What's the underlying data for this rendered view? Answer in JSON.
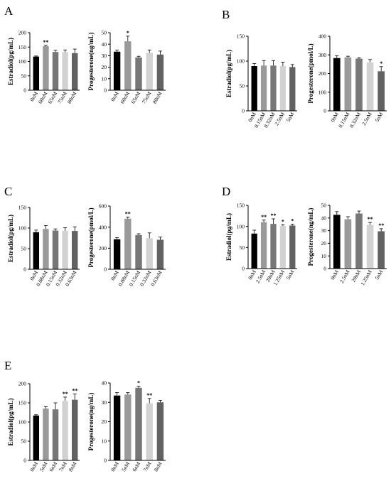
{
  "palette": [
    "#000000",
    "#9a9a9a",
    "#777777",
    "#d2d2d2",
    "#626262"
  ],
  "chart_data": [
    {
      "panel": "A",
      "type": "bar",
      "ylabel": "Estradiol(pg/mL)",
      "ylim": [
        0,
        200
      ],
      "yticks": [
        0,
        50,
        100,
        150,
        200
      ],
      "categories": [
        "0nM",
        "60nM",
        "65nM",
        "75nM",
        "80nM"
      ],
      "values": [
        117,
        153,
        133,
        133,
        129
      ],
      "errors": [
        2,
        3,
        6,
        7,
        14
      ],
      "sig": [
        "",
        "**",
        "",
        "",
        ""
      ]
    },
    {
      "panel": "A",
      "type": "bar",
      "ylabel": "Progesterone(ng/mL)",
      "ylim": [
        0,
        50
      ],
      "yticks": [
        0,
        10,
        20,
        30,
        40,
        50
      ],
      "categories": [
        "0nM",
        "60nM",
        "65nM",
        "75nM",
        "80nM"
      ],
      "values": [
        33.5,
        42.5,
        28.5,
        32.5,
        31.0
      ],
      "errors": [
        1.5,
        4.5,
        1.0,
        2.5,
        3.0
      ],
      "sig": [
        "",
        "*",
        "",
        "",
        ""
      ]
    },
    {
      "panel": "B",
      "type": "bar",
      "ylabel": "Estradiol(pg/mL)",
      "ylim": [
        0,
        150
      ],
      "yticks": [
        0,
        50,
        100,
        150
      ],
      "categories": [
        "0nM",
        "0.15nM",
        "0.32nM",
        "2.5nM",
        "5nM"
      ],
      "values": [
        90,
        91,
        91,
        90,
        88
      ],
      "errors": [
        5,
        10,
        10,
        8,
        5
      ],
      "sig": [
        "",
        "",
        "",
        "",
        ""
      ]
    },
    {
      "panel": "B",
      "type": "bar",
      "ylabel": "Progesterone(pmol/L)",
      "ylim": [
        0,
        400
      ],
      "yticks": [
        0,
        100,
        200,
        300,
        400
      ],
      "categories": [
        "0nM",
        "0.15nM",
        "0.32nM",
        "2.5nM",
        "5nM"
      ],
      "values": [
        283,
        287,
        280,
        260,
        212
      ],
      "errors": [
        12,
        6,
        5,
        15,
        25
      ],
      "sig": [
        "",
        "",
        "",
        "",
        "*"
      ]
    },
    {
      "panel": "C",
      "type": "bar",
      "ylabel": "Estradiol(pg/mL)",
      "ylim": [
        0,
        150
      ],
      "yticks": [
        0,
        50,
        100,
        150
      ],
      "categories": [
        "0nM",
        "0.08nM",
        "0.15nM",
        "0.32nM",
        "0.63nM"
      ],
      "values": [
        90,
        98,
        94,
        93,
        93
      ],
      "errors": [
        5,
        8,
        4,
        8,
        10
      ],
      "sig": [
        "",
        "",
        "",
        "",
        ""
      ]
    },
    {
      "panel": "C",
      "type": "bar",
      "ylabel": "Progesterone(pmol/L)",
      "ylim": [
        0,
        600
      ],
      "yticks": [
        0,
        200,
        400,
        600
      ],
      "categories": [
        "0nM",
        "0.08nM",
        "0.15nM",
        "0.32nM",
        "0.63nM"
      ],
      "values": [
        285,
        480,
        325,
        295,
        280
      ],
      "errors": [
        15,
        15,
        12,
        50,
        25
      ],
      "sig": [
        "",
        "**",
        "",
        "",
        ""
      ]
    },
    {
      "panel": "D",
      "type": "bar",
      "ylabel": "Estradiol(pg/mL)",
      "ylim": [
        0,
        150
      ],
      "yticks": [
        0,
        50,
        100,
        150
      ],
      "categories": [
        "0nM",
        "2.5nM",
        "20nM",
        "1.25nM",
        "5nM"
      ],
      "values": [
        83,
        110,
        106,
        101,
        102
      ],
      "errors": [
        8,
        5,
        12,
        3,
        3
      ],
      "sig": [
        "",
        "**",
        "**",
        "*",
        "*"
      ]
    },
    {
      "panel": "D",
      "type": "bar",
      "ylabel": "Progesterone(ng/mL)",
      "ylim": [
        0,
        50
      ],
      "yticks": [
        0,
        10,
        20,
        30,
        40,
        50
      ],
      "categories": [
        "0nM",
        "2.5nM",
        "20nM",
        "1.25nM",
        "5nM"
      ],
      "values": [
        42.5,
        39.0,
        43.5,
        34.5,
        29.5
      ],
      "errors": [
        2.5,
        2.0,
        2.0,
        2.0,
        2.0
      ],
      "sig": [
        "",
        "",
        "",
        "**",
        "**"
      ]
    },
    {
      "panel": "E",
      "type": "bar",
      "ylabel": "Estradiol(pg/mL)",
      "ylim": [
        0,
        200
      ],
      "yticks": [
        0,
        50,
        100,
        150,
        200
      ],
      "categories": [
        "0nM",
        "5nM",
        "6nM",
        "7nM",
        "8nM"
      ],
      "values": [
        117,
        135,
        133,
        155,
        158
      ],
      "errors": [
        2,
        5,
        17,
        10,
        15
      ],
      "sig": [
        "",
        "",
        "",
        "**",
        "**"
      ]
    },
    {
      "panel": "E",
      "type": "bar",
      "ylabel": "Progesterone(ng/mL)",
      "ylim": [
        0,
        40
      ],
      "yticks": [
        0,
        10,
        20,
        30,
        40
      ],
      "categories": [
        "0nM",
        "5nM",
        "6nM",
        "7nM",
        "8nM"
      ],
      "values": [
        33.5,
        34.0,
        37.5,
        29.5,
        30.0
      ],
      "errors": [
        1.5,
        1.0,
        0.8,
        2.5,
        1.0
      ],
      "sig": [
        "",
        "",
        "*",
        "**",
        ""
      ]
    }
  ]
}
